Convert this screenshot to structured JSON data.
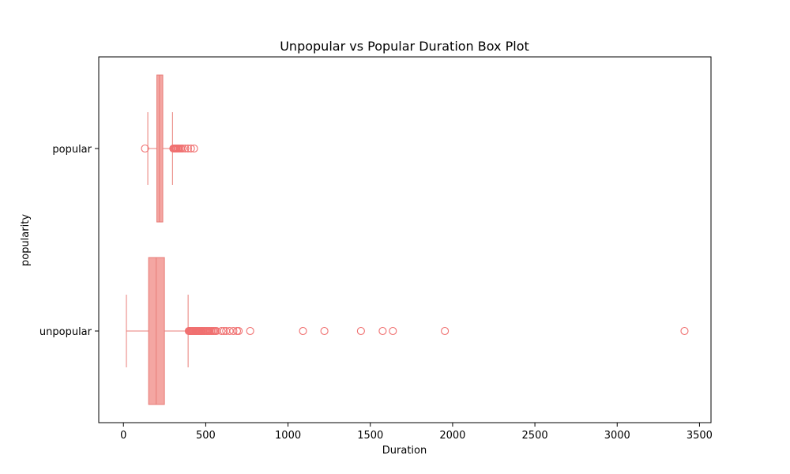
{
  "chart_data": {
    "type": "boxplot",
    "orientation": "horizontal",
    "title": "Unpopular vs Popular Duration Box Plot",
    "xlabel": "Duration",
    "ylabel": "popularity",
    "xlim": [
      -150,
      3570
    ],
    "xticks": [
      0,
      500,
      1000,
      1500,
      2000,
      2500,
      3000,
      3500
    ],
    "categories": [
      "unpopular",
      "popular"
    ],
    "grid": false,
    "colors": {
      "box_fill": "#f4a6a2",
      "box_edge": "#e87d78",
      "flier": "#f07070"
    },
    "series": [
      {
        "category": "unpopular",
        "whisker_low": 18,
        "q1": 153,
        "median": 199,
        "q3": 249,
        "whisker_high": 393,
        "outliers": [
          397,
          400,
          403,
          406,
          410,
          414,
          418,
          422,
          426,
          430,
          435,
          440,
          445,
          450,
          455,
          460,
          466,
          472,
          478,
          484,
          490,
          497,
          504,
          511,
          518,
          525,
          533,
          541,
          549,
          557,
          565,
          596,
          610,
          624,
          645,
          668,
          690,
          700,
          770,
          1091,
          1221,
          1443,
          1575,
          1637,
          1953,
          3409
        ]
      },
      {
        "category": "popular",
        "whisker_low": 148,
        "q1": 203,
        "median": 219,
        "q3": 239,
        "whisker_high": 298,
        "outliers": [
          131,
          303,
          308,
          313,
          318,
          323,
          329,
          335,
          342,
          350,
          360,
          375,
          392,
          410,
          429
        ]
      }
    ]
  }
}
